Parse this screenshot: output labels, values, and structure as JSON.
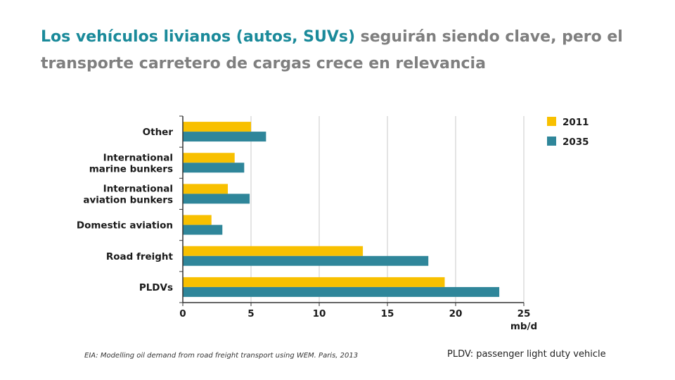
{
  "slide": {
    "title_highlight": "Los vehículos livianos (autos, SUVs)",
    "title_rest": " seguirán siendo clave, pero el transporte carretero de cargas crece en relevancia",
    "source": "EIA: Modelling oil demand from road freight transport using WEM. Paris, 2013",
    "footnote": "PLDV: passenger light duty vehicle"
  },
  "chart_data": {
    "type": "bar",
    "orientation": "horizontal",
    "categories": [
      [
        "Other"
      ],
      [
        "International",
        "marine bunkers"
      ],
      [
        "International",
        "aviation bunkers"
      ],
      [
        "Domestic aviation"
      ],
      [
        "Road freight"
      ],
      [
        "PLDVs"
      ]
    ],
    "series": [
      {
        "name": "2011",
        "color": "#f8c000",
        "values": [
          5.0,
          3.8,
          3.3,
          2.1,
          13.2,
          19.2
        ]
      },
      {
        "name": "2035",
        "color": "#2f869a",
        "values": [
          6.1,
          4.5,
          4.9,
          2.9,
          18.0,
          23.2
        ]
      }
    ],
    "xlabel": "mb/d",
    "xlim": [
      0,
      25
    ],
    "xticks": [
      0,
      5,
      10,
      15,
      20,
      25
    ],
    "grid": true,
    "legend_position": "top-right"
  }
}
